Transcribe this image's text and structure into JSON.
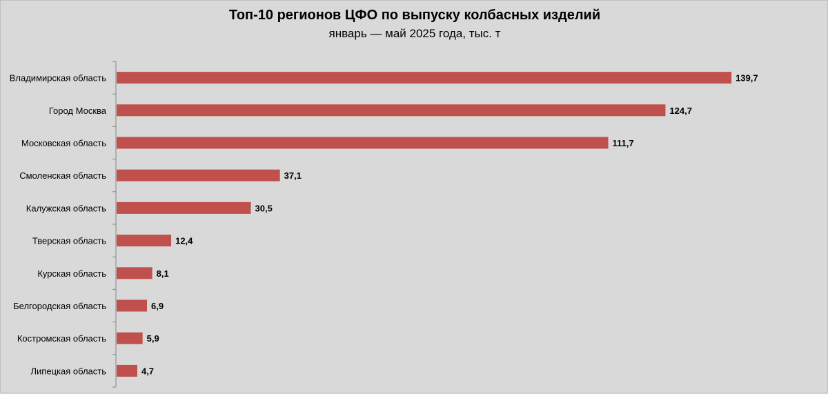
{
  "chart_data": {
    "type": "bar",
    "orientation": "horizontal",
    "title": "Топ-10 регионов ЦФО по выпуску колбасных изделий",
    "subtitle": "январь — май 2025 года, тыс. т",
    "categories": [
      "Владимирская область",
      "Город Москва",
      "Московская область",
      "Смоленская область",
      "Калужская область",
      "Тверская область",
      "Курская область",
      "Белгородская область",
      "Костромская область",
      "Липецкая область"
    ],
    "values": [
      139.7,
      124.7,
      111.7,
      37.1,
      30.5,
      12.4,
      8.1,
      6.9,
      5.9,
      4.7
    ],
    "value_labels": [
      "139,7",
      "124,7",
      "111,7",
      "37,1",
      "30,5",
      "12,4",
      "8,1",
      "6,9",
      "5,9",
      "4,7"
    ],
    "xlim": [
      0,
      140
    ],
    "grid": false,
    "legend": "none",
    "bar_color": "#c0504d"
  }
}
